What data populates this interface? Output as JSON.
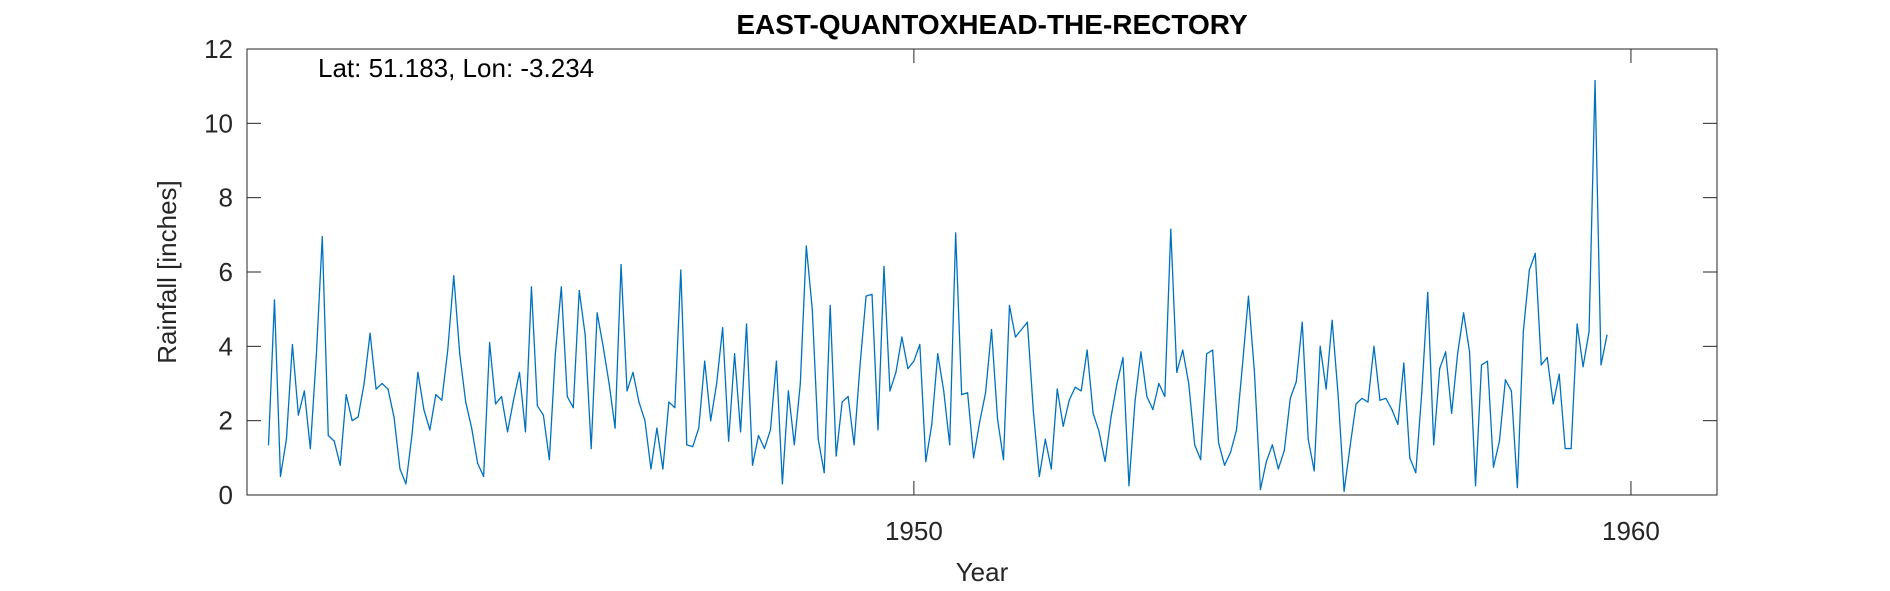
{
  "chart_data": {
    "type": "line",
    "title": "EAST-QUANTOXHEAD-THE-RECTORY",
    "xlabel": "Year",
    "ylabel": "Rainfall [inches]",
    "annotation": "Lat: 51.183, Lon: -3.234",
    "xlim": [
      1940.7,
      1961.2
    ],
    "ylim": [
      0,
      12
    ],
    "xticks": [
      1950,
      1960
    ],
    "yticks": [
      0,
      2,
      4,
      6,
      8,
      10,
      12
    ],
    "grid": false,
    "color": "#0072BD",
    "series": [
      {
        "x_start": 1941.0,
        "x_step": 0.08333,
        "values": [
          1.35,
          5.25,
          0.5,
          1.5,
          4.05,
          2.15,
          2.8,
          1.25,
          3.75,
          6.95,
          1.6,
          1.45,
          0.8,
          2.7,
          2.0,
          2.1,
          3.0,
          4.35,
          2.85,
          3.0,
          2.85,
          2.1,
          0.7,
          0.3,
          1.6,
          3.3,
          2.3,
          1.75,
          2.7,
          2.55,
          3.9,
          5.9,
          3.8,
          2.5,
          1.8,
          0.85,
          0.5,
          4.1,
          2.45,
          2.65,
          1.7,
          2.55,
          3.3,
          1.7,
          5.6,
          2.4,
          2.15,
          0.95,
          3.8,
          5.6,
          2.65,
          2.35,
          5.5,
          4.3,
          1.25,
          4.9,
          4.0,
          3.0,
          1.8,
          6.2,
          2.8,
          3.3,
          2.5,
          2.0,
          0.7,
          1.8,
          0.7,
          2.5,
          2.35,
          6.05,
          1.35,
          1.3,
          1.8,
          3.6,
          2.0,
          3.0,
          4.5,
          1.45,
          3.8,
          1.7,
          4.6,
          0.8,
          1.6,
          1.25,
          1.75,
          3.6,
          0.3,
          2.8,
          1.35,
          3.0,
          6.7,
          5.0,
          1.5,
          0.6,
          5.1,
          1.05,
          2.5,
          2.65,
          1.35,
          3.5,
          5.35,
          5.4,
          1.75,
          6.15,
          2.8,
          3.3,
          4.25,
          3.4,
          3.6,
          4.05,
          0.9,
          1.9,
          3.8,
          2.8,
          1.35,
          7.05,
          2.7,
          2.75,
          1.0,
          1.95,
          2.75,
          4.45,
          2.05,
          0.95,
          5.1,
          4.25,
          4.45,
          4.65,
          2.25,
          0.5,
          1.5,
          0.7,
          2.85,
          1.85,
          2.55,
          2.9,
          2.8,
          3.9,
          2.2,
          1.7,
          0.9,
          2.1,
          3.0,
          3.7,
          0.25,
          2.5,
          3.85,
          2.65,
          2.3,
          3.0,
          2.65,
          7.15,
          3.3,
          3.9,
          3.0,
          1.35,
          0.95,
          3.8,
          3.9,
          1.4,
          0.8,
          1.15,
          1.75,
          3.5,
          5.35,
          3.3,
          0.15,
          0.9,
          1.35,
          0.7,
          1.2,
          2.6,
          3.05,
          4.65,
          1.5,
          0.65,
          4.0,
          2.85,
          4.7,
          2.7,
          0.1,
          1.3,
          2.45,
          2.6,
          2.5,
          4.0,
          2.55,
          2.6,
          2.3,
          1.9,
          3.55,
          1.0,
          0.6,
          2.75,
          5.45,
          1.35,
          3.4,
          3.85,
          2.2,
          3.8,
          4.9,
          3.85,
          0.25,
          3.5,
          3.6,
          0.75,
          1.45,
          3.1,
          2.8,
          0.2,
          4.4,
          6.05,
          6.5,
          3.5,
          3.7,
          2.45,
          3.25,
          1.25,
          1.25,
          4.6,
          3.45,
          4.4,
          11.15,
          3.5,
          4.3
        ]
      }
    ]
  }
}
